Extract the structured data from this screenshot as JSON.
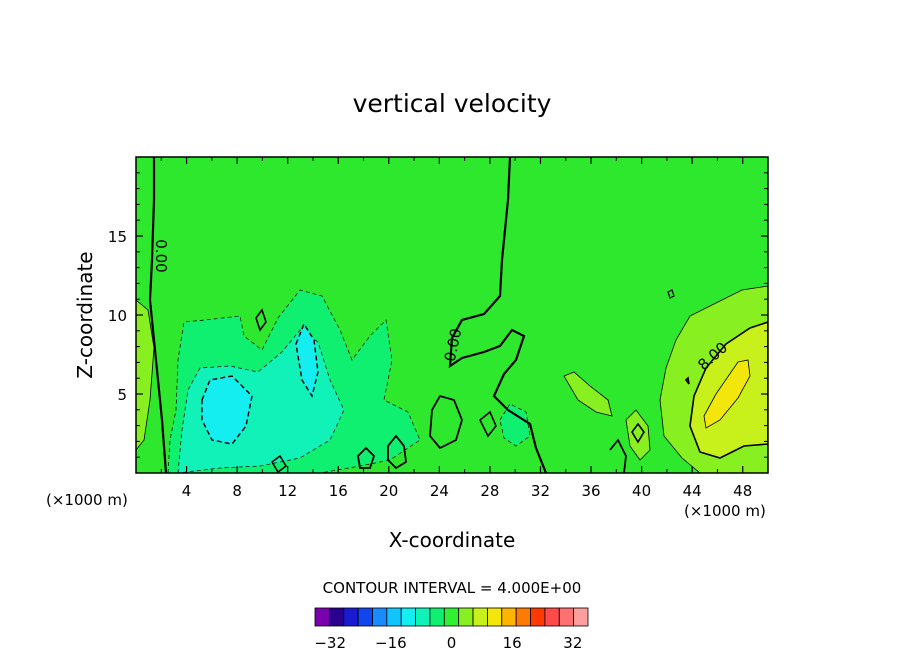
{
  "chart_data": {
    "type": "heatmap",
    "title": "vertical velocity",
    "xlabel": "X-coordinate",
    "ylabel": "Z-coordinate",
    "x_unit_left": "(×1000 m)",
    "x_unit_right": "(×1000 m)",
    "xlim": [
      0,
      50
    ],
    "ylim": [
      0,
      20
    ],
    "x_ticks": [
      4,
      8,
      12,
      16,
      20,
      24,
      28,
      32,
      36,
      40,
      44,
      48
    ],
    "y_ticks": [
      5,
      10,
      15
    ],
    "contour_interval_label": "CONTOUR INTERVAL = 4.000E+00",
    "contour_labels": [
      "0.00",
      "0.00",
      "8.00"
    ],
    "colorbar": {
      "min": -36,
      "max": 36,
      "step": 4,
      "tick_labels": [
        "-32",
        "-16",
        "0",
        "16",
        "32"
      ],
      "tick_values": [
        -32,
        -16,
        0,
        16,
        32
      ],
      "colors": [
        "#7a00b0",
        "#2a008e",
        "#1a1ad0",
        "#1046f0",
        "#1a8aff",
        "#10c4ff",
        "#14eef0",
        "#10f2b8",
        "#10f070",
        "#30f030",
        "#88f020",
        "#c8f01a",
        "#f2e60a",
        "#ffb400",
        "#ff7a00",
        "#ff3a00",
        "#ff4a4a",
        "#ff7070",
        "#ff9e9e"
      ]
    },
    "regions": [
      {
        "level": 0,
        "shape": "background",
        "color": "#2ee82e"
      },
      {
        "level": -4,
        "shape": "region",
        "color": "#10f070"
      },
      {
        "level": -8,
        "shape": "region",
        "color": "#10f2b8"
      },
      {
        "level": -12,
        "shape": "region",
        "color": "#14eef0"
      },
      {
        "level": 4,
        "shape": "region",
        "color": "#88f020"
      },
      {
        "level": 8,
        "shape": "region",
        "color": "#c8f01a"
      },
      {
        "level": 12,
        "shape": "region",
        "color": "#f2e60a"
      }
    ]
  }
}
